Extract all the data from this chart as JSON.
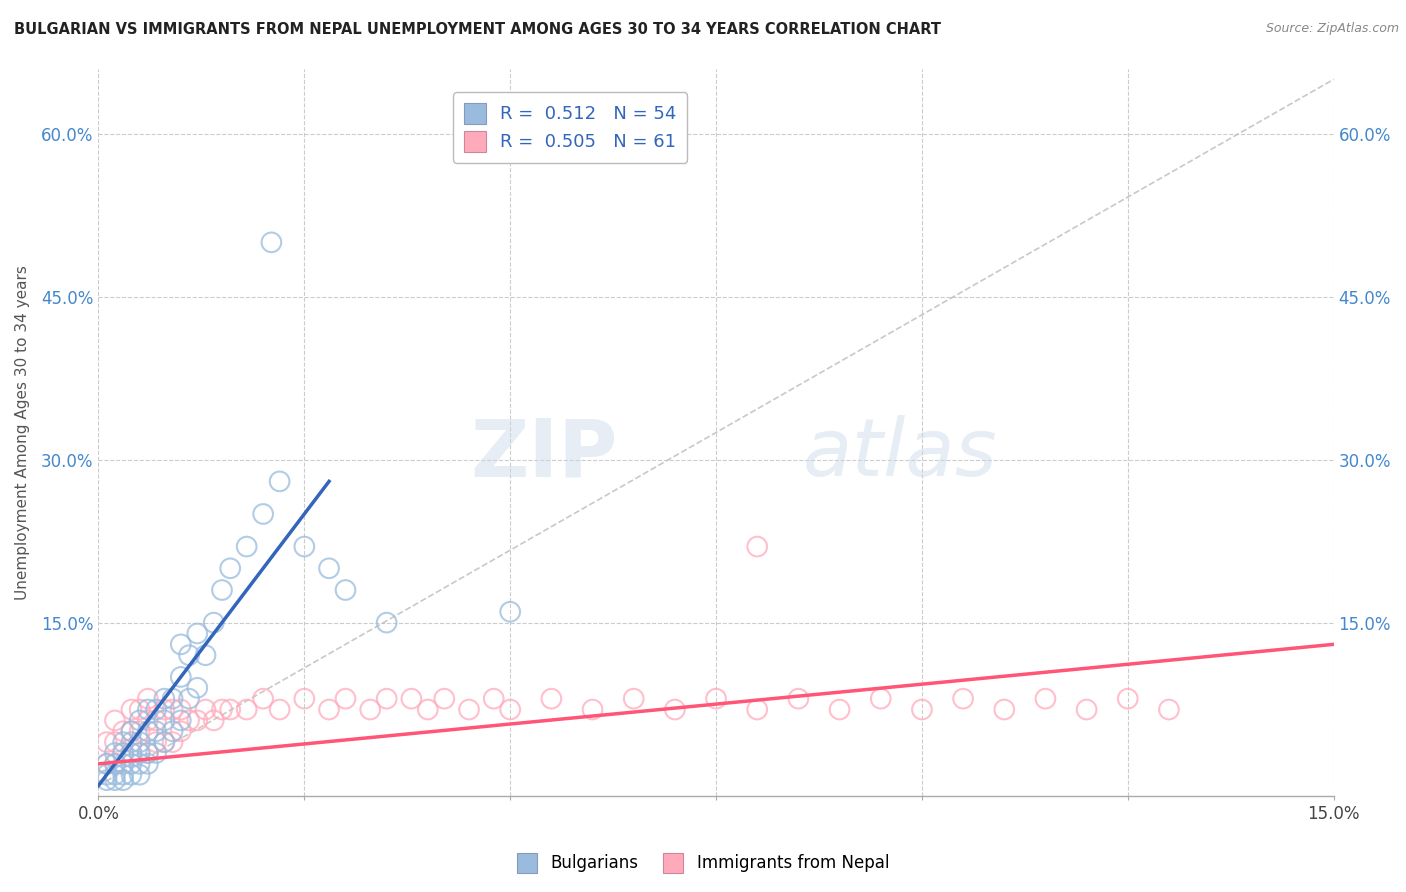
{
  "title": "BULGARIAN VS IMMIGRANTS FROM NEPAL UNEMPLOYMENT AMONG AGES 30 TO 34 YEARS CORRELATION CHART",
  "source": "Source: ZipAtlas.com",
  "ylabel": "Unemployment Among Ages 30 to 34 years",
  "y_tick_labels": [
    "15.0%",
    "30.0%",
    "45.0%",
    "60.0%"
  ],
  "y_tick_values": [
    0.15,
    0.3,
    0.45,
    0.6
  ],
  "xlim": [
    0.0,
    0.15
  ],
  "ylim": [
    -0.01,
    0.66
  ],
  "legend_entry1": "R =  0.512   N = 54",
  "legend_entry2": "R =  0.505   N = 61",
  "legend_label1": "Bulgarians",
  "legend_label2": "Immigrants from Nepal",
  "color_blue": "#99BBDD",
  "color_pink": "#FFAABB",
  "color_blue_line": "#3366BB",
  "color_pink_line": "#FF5577",
  "color_dashed": "#BBBBBB",
  "bulgarians_x": [
    0.001,
    0.001,
    0.001,
    0.002,
    0.002,
    0.002,
    0.002,
    0.003,
    0.003,
    0.003,
    0.003,
    0.003,
    0.004,
    0.004,
    0.004,
    0.004,
    0.004,
    0.005,
    0.005,
    0.005,
    0.005,
    0.005,
    0.006,
    0.006,
    0.006,
    0.006,
    0.007,
    0.007,
    0.007,
    0.008,
    0.008,
    0.008,
    0.009,
    0.009,
    0.01,
    0.01,
    0.01,
    0.011,
    0.011,
    0.012,
    0.012,
    0.013,
    0.014,
    0.015,
    0.016,
    0.018,
    0.02,
    0.022,
    0.025,
    0.028,
    0.03,
    0.035,
    0.05,
    0.021
  ],
  "bulgarians_y": [
    0.005,
    0.01,
    0.02,
    0.005,
    0.01,
    0.02,
    0.03,
    0.005,
    0.01,
    0.02,
    0.03,
    0.04,
    0.01,
    0.02,
    0.03,
    0.04,
    0.05,
    0.01,
    0.02,
    0.03,
    0.04,
    0.06,
    0.02,
    0.03,
    0.05,
    0.07,
    0.03,
    0.05,
    0.07,
    0.04,
    0.06,
    0.08,
    0.05,
    0.08,
    0.06,
    0.1,
    0.13,
    0.08,
    0.12,
    0.09,
    0.14,
    0.12,
    0.15,
    0.18,
    0.2,
    0.22,
    0.25,
    0.28,
    0.22,
    0.2,
    0.18,
    0.15,
    0.16,
    0.5
  ],
  "nepal_x": [
    0.001,
    0.001,
    0.002,
    0.002,
    0.002,
    0.003,
    0.003,
    0.004,
    0.004,
    0.004,
    0.005,
    0.005,
    0.005,
    0.006,
    0.006,
    0.006,
    0.007,
    0.007,
    0.008,
    0.008,
    0.009,
    0.009,
    0.01,
    0.01,
    0.011,
    0.012,
    0.013,
    0.014,
    0.015,
    0.016,
    0.018,
    0.02,
    0.022,
    0.025,
    0.028,
    0.03,
    0.033,
    0.035,
    0.038,
    0.04,
    0.042,
    0.045,
    0.048,
    0.05,
    0.055,
    0.06,
    0.065,
    0.07,
    0.075,
    0.08,
    0.085,
    0.09,
    0.095,
    0.1,
    0.105,
    0.11,
    0.115,
    0.12,
    0.125,
    0.13,
    0.08
  ],
  "nepal_y": [
    0.02,
    0.04,
    0.02,
    0.04,
    0.06,
    0.03,
    0.05,
    0.03,
    0.05,
    0.07,
    0.03,
    0.05,
    0.07,
    0.03,
    0.06,
    0.08,
    0.04,
    0.06,
    0.04,
    0.07,
    0.04,
    0.07,
    0.05,
    0.07,
    0.06,
    0.06,
    0.07,
    0.06,
    0.07,
    0.07,
    0.07,
    0.08,
    0.07,
    0.08,
    0.07,
    0.08,
    0.07,
    0.08,
    0.08,
    0.07,
    0.08,
    0.07,
    0.08,
    0.07,
    0.08,
    0.07,
    0.08,
    0.07,
    0.08,
    0.07,
    0.08,
    0.07,
    0.08,
    0.07,
    0.08,
    0.07,
    0.08,
    0.07,
    0.08,
    0.07,
    0.22
  ],
  "blue_trend_x": [
    0.0,
    0.028
  ],
  "blue_trend_y": [
    0.0,
    0.28
  ],
  "pink_trend_x": [
    0.0,
    0.15
  ],
  "pink_trend_y": [
    0.02,
    0.13
  ],
  "dashed_line_x": [
    0.0,
    0.15
  ],
  "dashed_line_y": [
    0.0,
    0.65
  ]
}
